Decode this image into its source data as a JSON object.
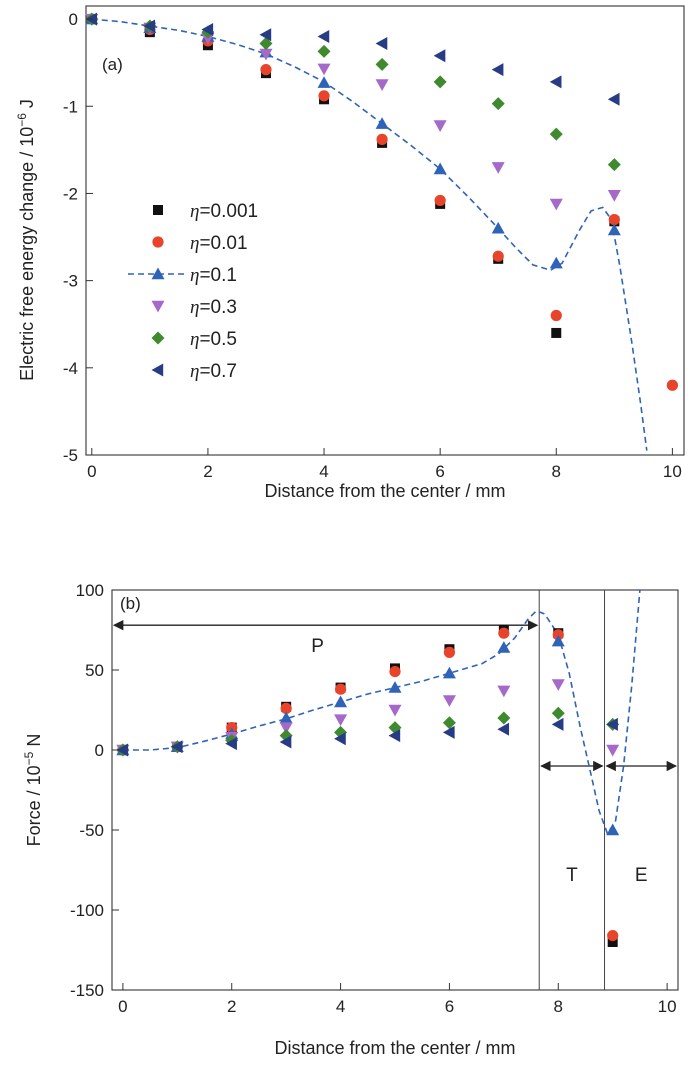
{
  "colors": {
    "eta_0_001": "#111111",
    "eta_0_01": "#e8432b",
    "eta_0_1": "#2f63b8",
    "eta_0_3": "#a569c9",
    "eta_0_5": "#3f8a2e",
    "eta_0_7": "#283c86",
    "fit_line": "#2f63b8"
  },
  "chart_data": [
    {
      "type": "scatter",
      "panel_label": "(a)",
      "xlabel": "Distance from the center / mm",
      "ylabel": "Electric free energy change / 10",
      "ylabel_exponent": "−6",
      "ylabel_unit": " J",
      "xlim": [
        -0.1,
        10.2
      ],
      "ylim": [
        -5,
        0.15
      ],
      "xticks": [
        0,
        2,
        4,
        6,
        8,
        10
      ],
      "yticks": [
        0,
        -1,
        -2,
        -3,
        -4,
        -5
      ],
      "xtick_labels": [
        "0",
        "2",
        "4",
        "6",
        "8",
        "10"
      ],
      "ytick_labels": [
        "0",
        "-1",
        "-2",
        "-3",
        "-4",
        "-5"
      ],
      "grid": false,
      "legend_position": "center-left",
      "legend_symbol": "η",
      "series": [
        {
          "name": "=0.001",
          "marker": "square",
          "color": "#111111",
          "points": [
            [
              0,
              0
            ],
            [
              1,
              -0.15
            ],
            [
              2,
              -0.3
            ],
            [
              3,
              -0.62
            ],
            [
              4,
              -0.92
            ],
            [
              5,
              -1.42
            ],
            [
              6,
              -2.12
            ],
            [
              7,
              -2.75
            ],
            [
              8,
              -3.6
            ],
            [
              9,
              -2.32
            ]
          ]
        },
        {
          "name": "=0.01",
          "marker": "circle",
          "color": "#e8432b",
          "points": [
            [
              0,
              0
            ],
            [
              1,
              -0.12
            ],
            [
              2,
              -0.25
            ],
            [
              3,
              -0.58
            ],
            [
              4,
              -0.88
            ],
            [
              5,
              -1.38
            ],
            [
              6,
              -2.08
            ],
            [
              7,
              -2.72
            ],
            [
              8,
              -3.4
            ],
            [
              9,
              -2.3
            ],
            [
              10,
              -4.2
            ]
          ]
        },
        {
          "name": "=0.1",
          "marker": "triangle-up",
          "color": "#2f63b8",
          "fit_line": true,
          "points": [
            [
              0,
              0
            ],
            [
              1,
              -0.1
            ],
            [
              2,
              -0.2
            ],
            [
              3,
              -0.38
            ],
            [
              4,
              -0.73
            ],
            [
              5,
              -1.2
            ],
            [
              6,
              -1.72
            ],
            [
              7,
              -2.4
            ],
            [
              8,
              -2.8
            ],
            [
              9,
              -2.42
            ]
          ]
        },
        {
          "name": "=0.3",
          "marker": "triangle-down",
          "color": "#a569c9",
          "points": [
            [
              0,
              0
            ],
            [
              1,
              -0.1
            ],
            [
              2,
              -0.22
            ],
            [
              3,
              -0.4
            ],
            [
              4,
              -0.57
            ],
            [
              5,
              -0.75
            ],
            [
              6,
              -1.22
            ],
            [
              7,
              -1.7
            ],
            [
              8,
              -2.12
            ],
            [
              9,
              -2.02
            ]
          ]
        },
        {
          "name": "=0.5",
          "marker": "diamond",
          "color": "#3f8a2e",
          "points": [
            [
              0,
              0
            ],
            [
              1,
              -0.08
            ],
            [
              2,
              -0.15
            ],
            [
              3,
              -0.28
            ],
            [
              4,
              -0.37
            ],
            [
              5,
              -0.52
            ],
            [
              6,
              -0.72
            ],
            [
              7,
              -0.97
            ],
            [
              8,
              -1.32
            ],
            [
              9,
              -1.67
            ]
          ]
        },
        {
          "name": "=0.7",
          "marker": "triangle-left",
          "color": "#283c86",
          "points": [
            [
              0,
              0
            ],
            [
              1,
              -0.08
            ],
            [
              2,
              -0.12
            ],
            [
              3,
              -0.18
            ],
            [
              4,
              -0.2
            ],
            [
              5,
              -0.28
            ],
            [
              6,
              -0.42
            ],
            [
              7,
              -0.58
            ],
            [
              8,
              -0.72
            ],
            [
              9,
              -0.92
            ]
          ]
        }
      ],
      "fit_curve": [
        [
          0,
          0
        ],
        [
          0.5,
          -0.03
        ],
        [
          1,
          -0.08
        ],
        [
          1.5,
          -0.13
        ],
        [
          2,
          -0.2
        ],
        [
          2.5,
          -0.29
        ],
        [
          3,
          -0.4
        ],
        [
          3.5,
          -0.55
        ],
        [
          4,
          -0.72
        ],
        [
          4.5,
          -0.95
        ],
        [
          5,
          -1.2
        ],
        [
          5.5,
          -1.45
        ],
        [
          6,
          -1.72
        ],
        [
          6.5,
          -2.05
        ],
        [
          7,
          -2.4
        ],
        [
          7.3,
          -2.62
        ],
        [
          7.6,
          -2.82
        ],
        [
          7.9,
          -2.88
        ],
        [
          8.1,
          -2.8
        ],
        [
          8.4,
          -2.42
        ],
        [
          8.6,
          -2.2
        ],
        [
          8.8,
          -2.16
        ],
        [
          8.95,
          -2.3
        ],
        [
          9.1,
          -2.85
        ],
        [
          9.3,
          -3.7
        ],
        [
          9.45,
          -4.4
        ],
        [
          9.56,
          -4.95
        ]
      ]
    },
    {
      "type": "scatter",
      "panel_label": "(b)",
      "xlabel": "Distance from the center / mm",
      "ylabel": "Force / 10",
      "ylabel_exponent": "−5",
      "ylabel_unit": " N",
      "xlim": [
        -0.2,
        10.2
      ],
      "ylim": [
        -150,
        100
      ],
      "xticks": [
        0,
        2,
        4,
        6,
        8,
        10
      ],
      "yticks": [
        100,
        50,
        0,
        -50,
        -100,
        -150
      ],
      "xtick_labels": [
        "0",
        "2",
        "4",
        "6",
        "8",
        "10"
      ],
      "ytick_labels": [
        "100",
        "50",
        "0",
        "-50",
        "-100",
        "-150"
      ],
      "grid": false,
      "regions": [
        {
          "label": "P",
          "x_start": -0.2,
          "x_end": 7.65
        },
        {
          "label": "T",
          "x_start": 7.65,
          "x_end": 8.85
        },
        {
          "label": "E",
          "x_start": 8.85,
          "x_end": 10.2
        }
      ],
      "region_boundaries": [
        7.65,
        8.85
      ],
      "series": [
        {
          "name": "=0.001",
          "marker": "square",
          "color": "#111111",
          "points": [
            [
              0,
              0
            ],
            [
              1,
              2
            ],
            [
              2,
              14
            ],
            [
              3,
              27
            ],
            [
              4,
              39
            ],
            [
              5,
              51
            ],
            [
              6,
              63
            ],
            [
              7,
              75
            ],
            [
              8,
              73
            ],
            [
              9,
              -120
            ]
          ]
        },
        {
          "name": "=0.01",
          "marker": "circle",
          "color": "#e8432b",
          "points": [
            [
              0,
              0
            ],
            [
              1,
              2
            ],
            [
              2,
              14
            ],
            [
              3,
              26
            ],
            [
              4,
              38
            ],
            [
              5,
              49
            ],
            [
              6,
              61
            ],
            [
              7,
              73
            ],
            [
              8,
              72
            ],
            [
              9,
              -116
            ]
          ]
        },
        {
          "name": "=0.1",
          "marker": "triangle-up",
          "color": "#2f63b8",
          "fit_line": true,
          "points": [
            [
              0,
              0
            ],
            [
              1,
              2
            ],
            [
              2,
              10
            ],
            [
              3,
              20
            ],
            [
              4,
              30
            ],
            [
              5,
              39
            ],
            [
              6,
              48
            ],
            [
              7,
              64
            ],
            [
              8,
              68
            ],
            [
              9,
              -50
            ]
          ]
        },
        {
          "name": "=0.3",
          "marker": "triangle-down",
          "color": "#a569c9",
          "points": [
            [
              0,
              0
            ],
            [
              1,
              2
            ],
            [
              2,
              8
            ],
            [
              3,
              14
            ],
            [
              4,
              19
            ],
            [
              5,
              25
            ],
            [
              6,
              31
            ],
            [
              7,
              37
            ],
            [
              8,
              41
            ],
            [
              9,
              0
            ]
          ]
        },
        {
          "name": "=0.5",
          "marker": "diamond",
          "color": "#3f8a2e",
          "points": [
            [
              0,
              0
            ],
            [
              1,
              2
            ],
            [
              2,
              6
            ],
            [
              3,
              9
            ],
            [
              4,
              11
            ],
            [
              5,
              14
            ],
            [
              6,
              17
            ],
            [
              7,
              20
            ],
            [
              8,
              23
            ],
            [
              9,
              16
            ]
          ]
        },
        {
          "name": "=0.7",
          "marker": "triangle-left",
          "color": "#283c86",
          "points": [
            [
              0,
              0
            ],
            [
              1,
              2
            ],
            [
              2,
              4
            ],
            [
              3,
              5
            ],
            [
              4,
              7
            ],
            [
              5,
              9
            ],
            [
              6,
              11
            ],
            [
              7,
              13
            ],
            [
              8,
              16
            ],
            [
              9,
              16
            ]
          ]
        }
      ],
      "fit_curve": [
        [
          0,
          0
        ],
        [
          0.5,
          0
        ],
        [
          1,
          1.5
        ],
        [
          1.5,
          5.5
        ],
        [
          2,
          10
        ],
        [
          2.5,
          15
        ],
        [
          3,
          19.5
        ],
        [
          3.5,
          25
        ],
        [
          4,
          30
        ],
        [
          4.5,
          35
        ],
        [
          5,
          39
        ],
        [
          5.5,
          43
        ],
        [
          6,
          48
        ],
        [
          6.3,
          51
        ],
        [
          6.6,
          54
        ],
        [
          6.9,
          60
        ],
        [
          7.2,
          70
        ],
        [
          7.45,
          82
        ],
        [
          7.6,
          87
        ],
        [
          7.75,
          85
        ],
        [
          8,
          72
        ],
        [
          8.2,
          48
        ],
        [
          8.4,
          15
        ],
        [
          8.6,
          -15
        ],
        [
          8.75,
          -38
        ],
        [
          8.9,
          -52
        ],
        [
          9.05,
          -45
        ],
        [
          9.2,
          -10
        ],
        [
          9.35,
          40
        ],
        [
          9.5,
          100
        ]
      ]
    }
  ]
}
